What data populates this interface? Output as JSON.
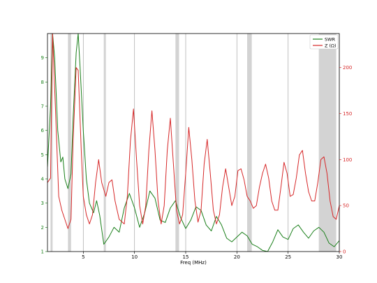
{
  "chart_data": {
    "type": "line",
    "xlabel": "Freq (MHz)",
    "xlim": [
      1.5,
      30
    ],
    "x_ticks": [
      5,
      10,
      15,
      20,
      25,
      30
    ],
    "y_left": {
      "lim": [
        1,
        10
      ],
      "ticks": [
        1,
        2,
        3,
        4,
        5,
        6,
        7,
        8,
        9
      ],
      "color": "#1a7f1a"
    },
    "y_right": {
      "lim": [
        0,
        237
      ],
      "ticks": [
        0,
        50,
        100,
        150,
        200
      ],
      "color": "#d62728"
    },
    "legend": {
      "placement": "top-right",
      "entries": [
        "SWR",
        "Z (Ω)"
      ]
    },
    "grid": {
      "vertical": true,
      "horizontal": false
    },
    "bands": [
      [
        1.8,
        2.0
      ],
      [
        3.5,
        3.8
      ],
      [
        7.0,
        7.2
      ],
      [
        14.0,
        14.35
      ],
      [
        21.0,
        21.45
      ],
      [
        28.0,
        29.7
      ]
    ],
    "series": [
      {
        "name": "SWR",
        "axis": "left",
        "color": "#1a7f1a",
        "x": [
          1.5,
          1.8,
          2.0,
          2.2,
          2.5,
          2.8,
          3.0,
          3.2,
          3.5,
          3.8,
          4.0,
          4.3,
          4.5,
          4.7,
          5.0,
          5.3,
          5.6,
          6.0,
          6.3,
          6.6,
          7.0,
          7.5,
          8.0,
          8.5,
          9.0,
          9.5,
          10.0,
          10.5,
          11.0,
          11.5,
          12.0,
          12.5,
          13.0,
          13.5,
          14.0,
          14.5,
          15.0,
          15.5,
          16.0,
          16.5,
          17.0,
          17.5,
          18.0,
          18.5,
          19.0,
          19.5,
          20.0,
          20.5,
          21.0,
          21.5,
          22.0,
          22.5,
          23.0,
          23.5,
          24.0,
          24.5,
          25.0,
          25.5,
          26.0,
          26.5,
          27.0,
          27.5,
          28.0,
          28.5,
          29.0,
          29.5,
          30.0
        ],
        "y": [
          4.5,
          7.0,
          10.0,
          9.0,
          6.0,
          4.7,
          4.9,
          4.0,
          3.6,
          4.2,
          6.5,
          9.2,
          10.0,
          8.5,
          6.0,
          4.0,
          3.0,
          2.6,
          3.1,
          2.5,
          1.3,
          1.6,
          2.0,
          1.8,
          2.8,
          3.4,
          2.8,
          2.0,
          2.6,
          3.5,
          3.2,
          2.3,
          2.2,
          2.8,
          3.1,
          2.4,
          1.95,
          2.3,
          2.85,
          2.7,
          2.1,
          1.85,
          2.45,
          2.1,
          1.55,
          1.4,
          1.6,
          1.8,
          1.65,
          1.3,
          1.2,
          1.05,
          1.0,
          1.4,
          1.9,
          1.6,
          1.5,
          1.95,
          2.1,
          1.8,
          1.55,
          1.85,
          2.0,
          1.8,
          1.35,
          1.2,
          1.45
        ]
      },
      {
        "name": "Z (Ω)",
        "axis": "right",
        "color": "#d62728",
        "x": [
          1.5,
          1.8,
          2.0,
          2.3,
          2.6,
          2.9,
          3.2,
          3.5,
          3.8,
          4.0,
          4.3,
          4.5,
          4.8,
          5.0,
          5.3,
          5.6,
          5.9,
          6.2,
          6.5,
          6.8,
          7.2,
          7.5,
          7.8,
          8.1,
          8.5,
          9.0,
          9.3,
          9.6,
          9.9,
          10.2,
          10.5,
          10.8,
          11.1,
          11.4,
          11.7,
          12.0,
          12.3,
          12.6,
          12.9,
          13.2,
          13.5,
          13.8,
          14.1,
          14.4,
          14.7,
          15.0,
          15.3,
          15.6,
          15.9,
          16.2,
          16.5,
          16.8,
          17.1,
          17.4,
          17.7,
          18.0,
          18.3,
          18.6,
          18.9,
          19.2,
          19.5,
          19.8,
          20.1,
          20.4,
          20.7,
          21.0,
          21.3,
          21.6,
          21.9,
          22.2,
          22.5,
          22.8,
          23.1,
          23.4,
          23.7,
          24.0,
          24.3,
          24.6,
          24.9,
          25.2,
          25.5,
          25.8,
          26.1,
          26.4,
          26.7,
          27.0,
          27.3,
          27.6,
          27.9,
          28.2,
          28.5,
          28.8,
          29.1,
          29.4,
          29.7,
          30.0
        ],
        "y": [
          75,
          80,
          237,
          150,
          60,
          45,
          35,
          25,
          35,
          120,
          200,
          197,
          110,
          60,
          40,
          30,
          40,
          75,
          100,
          75,
          60,
          75,
          78,
          55,
          35,
          30,
          60,
          120,
          155,
          100,
          50,
          30,
          50,
          110,
          153,
          110,
          55,
          30,
          50,
          110,
          145,
          95,
          45,
          30,
          40,
          85,
          135,
          100,
          55,
          32,
          45,
          95,
          122,
          85,
          45,
          30,
          40,
          70,
          90,
          70,
          50,
          60,
          88,
          90,
          78,
          60,
          55,
          47,
          50,
          70,
          85,
          95,
          80,
          55,
          45,
          45,
          70,
          97,
          85,
          60,
          62,
          80,
          105,
          110,
          85,
          65,
          55,
          55,
          75,
          100,
          103,
          85,
          55,
          38,
          35,
          50
        ]
      }
    ]
  }
}
